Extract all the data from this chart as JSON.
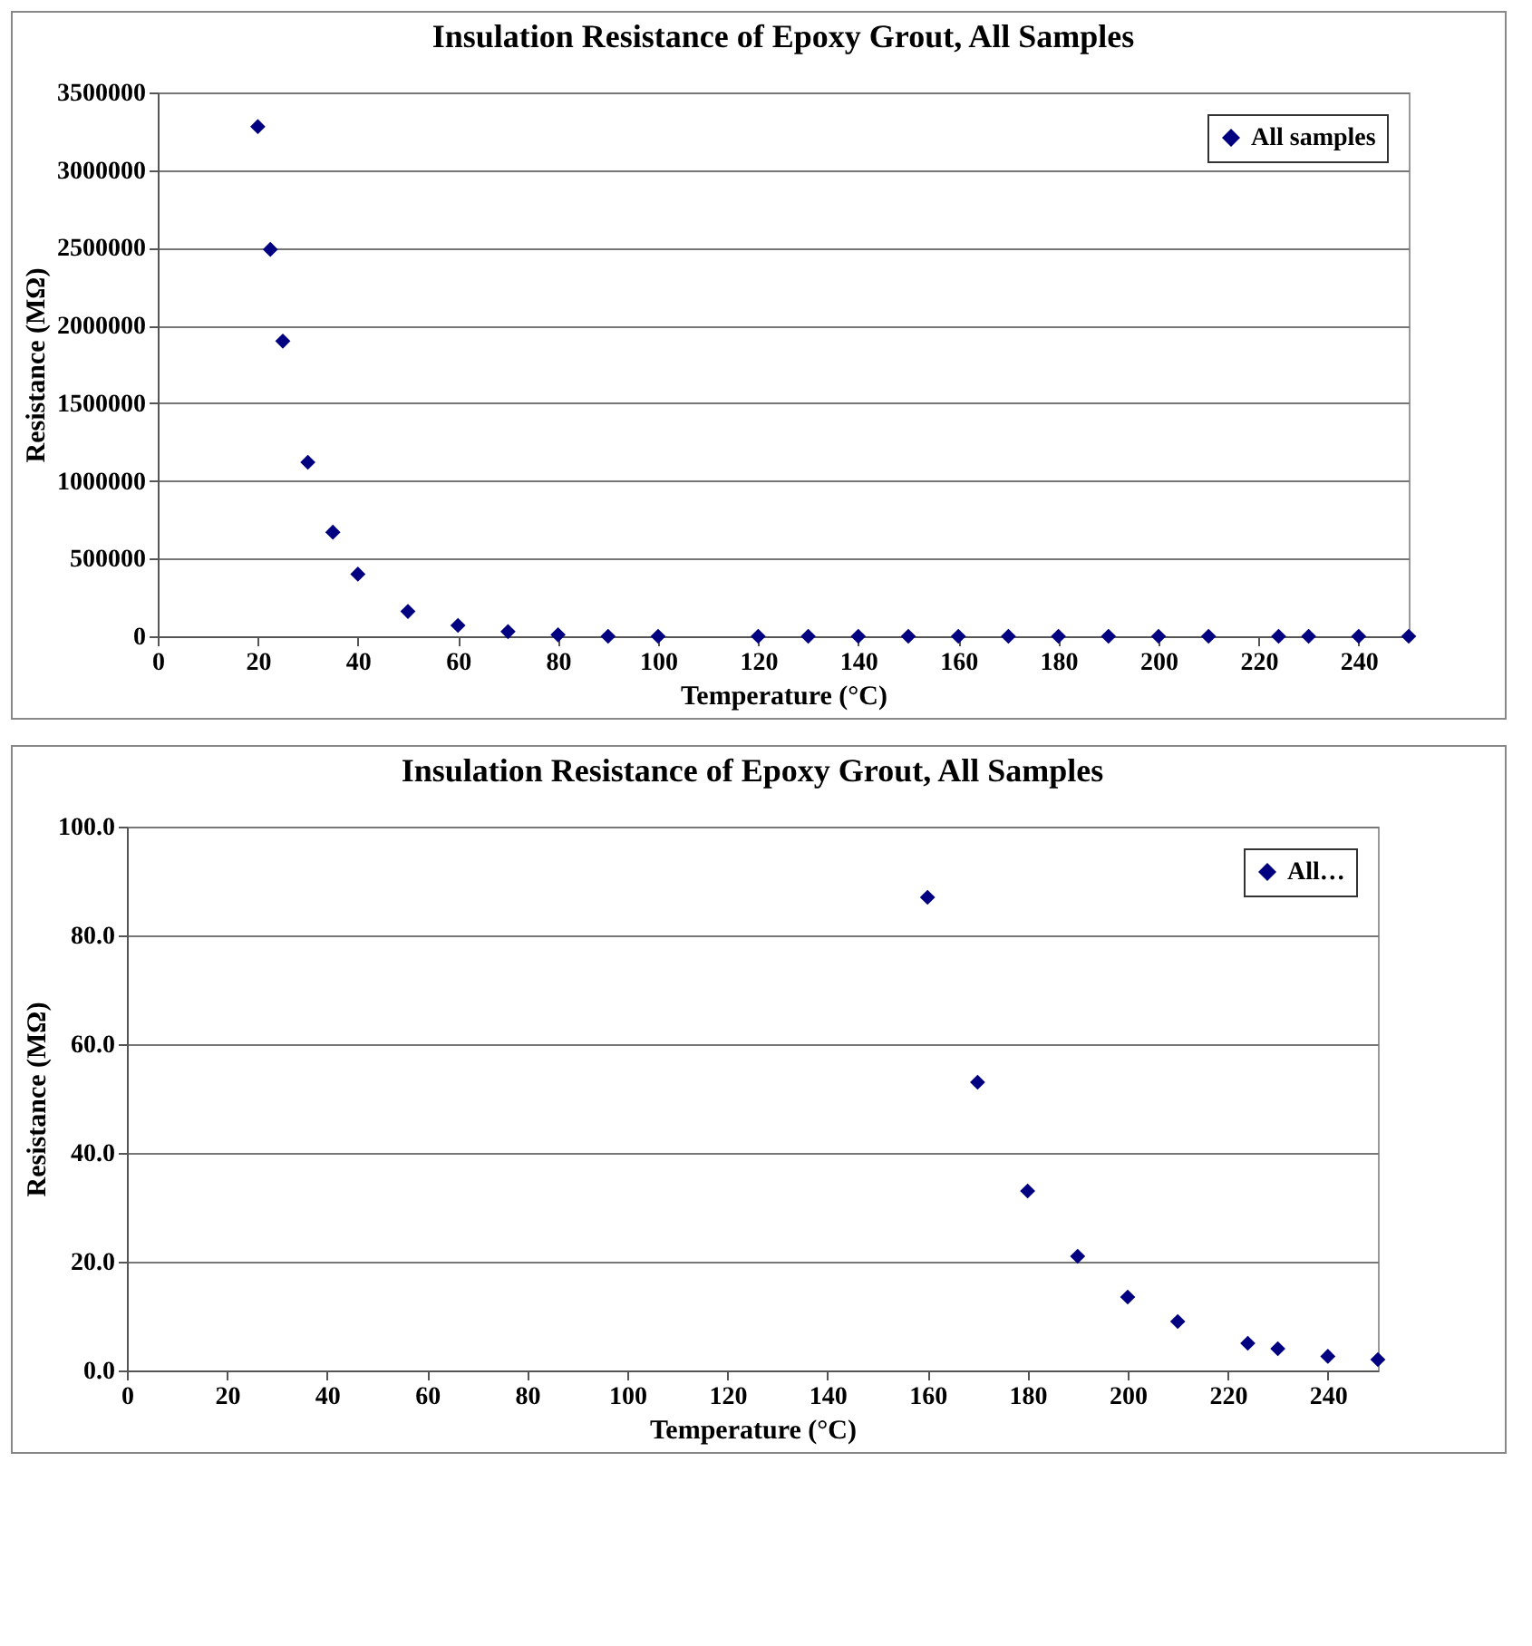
{
  "chart_data": [
    {
      "type": "scatter",
      "title": "Insulation Resistance of Epoxy Grout, All Samples",
      "xlabel": "Temperature (°C)",
      "ylabel": "Resistance (MΩ)",
      "x": [
        20,
        22.5,
        25,
        30,
        35,
        40,
        50,
        60,
        70,
        80,
        90,
        100,
        120,
        130,
        140,
        150,
        160,
        170,
        180,
        190,
        200,
        210,
        224,
        230,
        240,
        250
      ],
      "series": [
        {
          "name": "All samples",
          "color": "#000080",
          "values": [
            3280000,
            2490000,
            1900000,
            1120000,
            670000,
            400000,
            160000,
            70000,
            30000,
            10000,
            0,
            0,
            0,
            0,
            0,
            0,
            0,
            0,
            0,
            0,
            0,
            0,
            0,
            0,
            0,
            0
          ]
        }
      ],
      "xlim": [
        0,
        250
      ],
      "xticks": [
        0,
        20,
        40,
        60,
        80,
        100,
        120,
        140,
        160,
        180,
        200,
        220,
        240
      ],
      "ylim": [
        0,
        3500000
      ],
      "yticks": [
        0,
        500000,
        1000000,
        1500000,
        2000000,
        2500000,
        3000000,
        3500000
      ],
      "grid": "y",
      "legend": "top right",
      "marker": "diamond"
    },
    {
      "type": "scatter",
      "title": "Insulation Resistance of Epoxy Grout, All Samples",
      "xlabel": "Temperature (°C)",
      "ylabel": "Resistance (MΩ)",
      "x": [
        160,
        170,
        180,
        190,
        200,
        210,
        224,
        230,
        240,
        250
      ],
      "series": [
        {
          "name": "All…",
          "color": "#000080",
          "values": [
            87,
            53,
            33,
            21,
            13.5,
            9,
            5,
            4,
            2.6,
            2
          ]
        }
      ],
      "xlim": [
        0,
        250
      ],
      "xticks": [
        0,
        20,
        40,
        60,
        80,
        100,
        120,
        140,
        160,
        180,
        200,
        220,
        240
      ],
      "ylim": [
        0,
        100
      ],
      "yticks": [
        {
          "value": 0,
          "label": "0.0"
        },
        {
          "value": 20,
          "label": "20.0"
        },
        {
          "value": 40,
          "label": "40.0"
        },
        {
          "value": 60,
          "label": "60.0"
        },
        {
          "value": 80,
          "label": "80.0"
        },
        {
          "value": 100,
          "label": "100.0"
        }
      ],
      "grid": "y",
      "legend": "top right",
      "marker": "diamond"
    }
  ]
}
